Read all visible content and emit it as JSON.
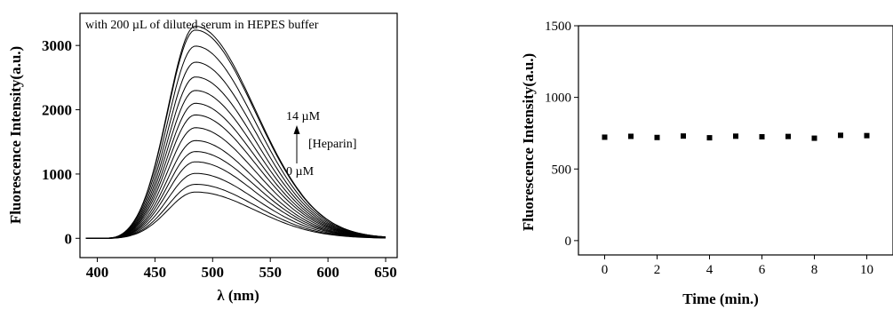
{
  "chart_data": [
    {
      "type": "line",
      "annotation": "with 200 µL of diluted serum in HEPES buffer",
      "xlabel": "λ (nm)",
      "ylabel": "Fluorescence Intensity(a.u.)",
      "xlim": [
        385,
        660
      ],
      "ylim": [
        -300,
        3500
      ],
      "xticks": [
        400,
        450,
        500,
        550,
        600,
        650
      ],
      "yticks": [
        0,
        1000,
        2000,
        3000
      ],
      "arrow_top_label": "14 µM",
      "arrow_bottom_label": "0 µM",
      "arrow_side_label": "[Heparin]",
      "peak_wavelength": 485,
      "x_range": [
        390,
        650
      ],
      "series": [
        {
          "peak": 720
        },
        {
          "peak": 840
        },
        {
          "peak": 1010
        },
        {
          "peak": 1190
        },
        {
          "peak": 1350
        },
        {
          "peak": 1520
        },
        {
          "peak": 1720
        },
        {
          "peak": 1920
        },
        {
          "peak": 2100
        },
        {
          "peak": 2300
        },
        {
          "peak": 2510
        },
        {
          "peak": 2740
        },
        {
          "peak": 2990
        },
        {
          "peak": 3240
        },
        {
          "peak": 3300
        }
      ]
    },
    {
      "type": "scatter",
      "xlabel": "Time (min.)",
      "ylabel": "Fluorescence Intensity(a.u.)",
      "xlim": [
        -1,
        11
      ],
      "ylim": [
        -100,
        1500
      ],
      "xticks": [
        0,
        2,
        4,
        6,
        8,
        10
      ],
      "yticks": [
        0,
        500,
        1000,
        1500
      ],
      "points": [
        {
          "x": 0,
          "y": 722
        },
        {
          "x": 1,
          "y": 728
        },
        {
          "x": 2,
          "y": 720
        },
        {
          "x": 3,
          "y": 730
        },
        {
          "x": 4,
          "y": 718
        },
        {
          "x": 5,
          "y": 729
        },
        {
          "x": 6,
          "y": 725
        },
        {
          "x": 7,
          "y": 727
        },
        {
          "x": 8,
          "y": 715
        },
        {
          "x": 9,
          "y": 735
        },
        {
          "x": 10,
          "y": 733
        }
      ]
    }
  ]
}
